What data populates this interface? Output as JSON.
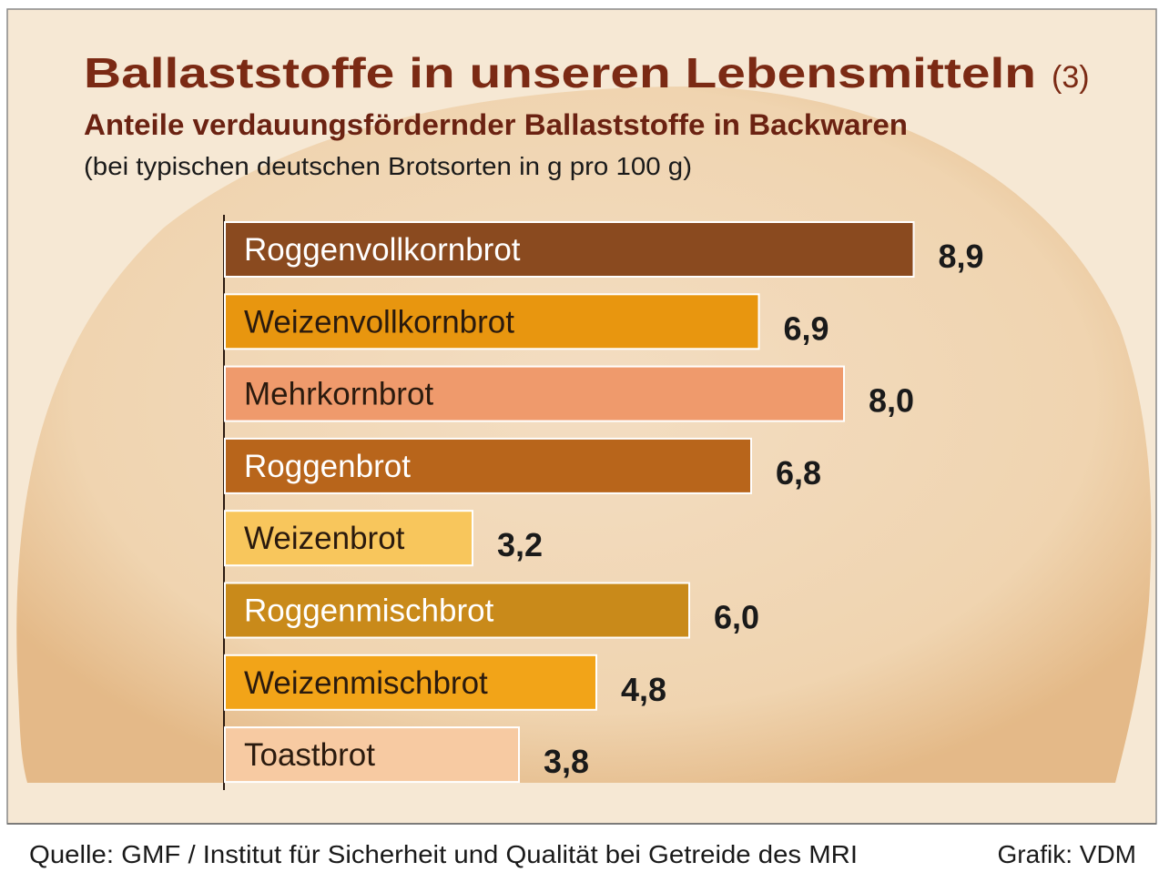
{
  "chart_data": {
    "type": "bar",
    "orientation": "horizontal",
    "title": "Ballaststoffe in unseren Lebensmitteln",
    "title_number": "(3)",
    "subtitle": "Anteile verdauungsfördernder Ballaststoffe in Backwaren",
    "note": "(bei typischen deutschen Brotsorten in g pro 100 g)",
    "source": "Quelle: GMF / Institut für Sicherheit und Qualität bei Getreide des MRI",
    "credit": "Grafik: VDM",
    "categories": [
      "Roggenvollkornbrot",
      "Weizenvollkornbrot",
      "Mehrkornbrot",
      "Roggenbrot",
      "Weizenbrot",
      "Roggenmischbrot",
      "Weizenmischbrot",
      "Toastbrot"
    ],
    "values": [
      8.9,
      6.9,
      8.0,
      6.8,
      3.2,
      6.0,
      4.8,
      3.8
    ],
    "value_labels": [
      "8,9",
      "6,9",
      "8,0",
      "6,8",
      "3,2",
      "6,0",
      "4,8",
      "3,8"
    ],
    "colors": [
      "#8a4a1f",
      "#e8960f",
      "#ef9a6c",
      "#b8651b",
      "#f8c65c",
      "#c98a1a",
      "#f2a418",
      "#f7caa2"
    ]
  }
}
